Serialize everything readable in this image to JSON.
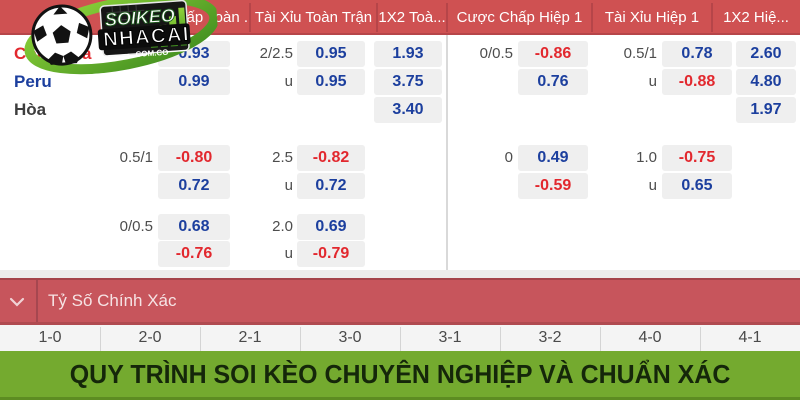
{
  "brand": {
    "name_top": "SOIKEO",
    "name_bottom": "NHACAI",
    "domain": ".COM.CO"
  },
  "odds_table": {
    "columns": [
      "Cược Chấp Toàn ...",
      "Tài Xỉu Toàn Trận",
      "1X2 Toà...",
      "Cược Chấp Hiệp 1",
      "Tài Xỉu Hiệp 1",
      "1X2 Hiệ..."
    ],
    "rows": [
      {
        "team": "Colombia",
        "team_color": "#e2282e",
        "cells": {
          "h1": "",
          "p1": "0.93",
          "h2": "2/2.5",
          "p2": "0.95",
          "p3": "1.93",
          "h4": "0/0.5",
          "p4": "-0.86",
          "h5": "0.5/1",
          "p5": "0.78",
          "p6": "2.60"
        }
      },
      {
        "team": "Peru",
        "team_color": "#1c3f9e",
        "cells": {
          "h1": "",
          "p1": "0.99",
          "h2": "u",
          "p2": "0.95",
          "p3": "3.75",
          "h4": "",
          "p4": "0.76",
          "h5": "u",
          "p5": "-0.88",
          "p6": "4.80"
        }
      },
      {
        "team": "Hòa",
        "team_color": "#3d3d3d",
        "cells": {
          "p3": "3.40",
          "p6": "1.97"
        }
      },
      {
        "cells": {
          "h1": "0.5/1",
          "p1": "-0.80",
          "h2": "2.5",
          "p2": "-0.82",
          "h4": "0",
          "p4": "0.49",
          "h5": "1.0",
          "p5": "-0.75"
        }
      },
      {
        "cells": {
          "p1": "0.72",
          "h2": "u",
          "p2": "0.72",
          "p4": "-0.59",
          "h5": "u",
          "p5": "0.65"
        }
      },
      {
        "cells": {
          "h1": "0/0.5",
          "p1": "0.68",
          "h2": "2.0",
          "p2": "0.69"
        }
      },
      {
        "cells": {
          "p1": "-0.76",
          "h2": "u",
          "p2": "-0.79"
        }
      }
    ]
  },
  "score_section": {
    "title": "Tỷ Số Chính Xác",
    "scores": [
      "1-0",
      "2-0",
      "2-1",
      "3-0",
      "3-1",
      "3-2",
      "4-0",
      "4-1"
    ]
  },
  "banner": {
    "text": "QUY TRÌNH SOI KÈO CHUYÊN NGHIỆP VÀ CHUẨN XÁC"
  },
  "colors": {
    "header_red": "#cf5152",
    "score_bar_red": "#c7555c",
    "banner_green": "#74aa2f",
    "odds_positive_blue": "#1c3f9e",
    "odds_negative_red": "#e2282e",
    "pill_background": "#efefef"
  }
}
